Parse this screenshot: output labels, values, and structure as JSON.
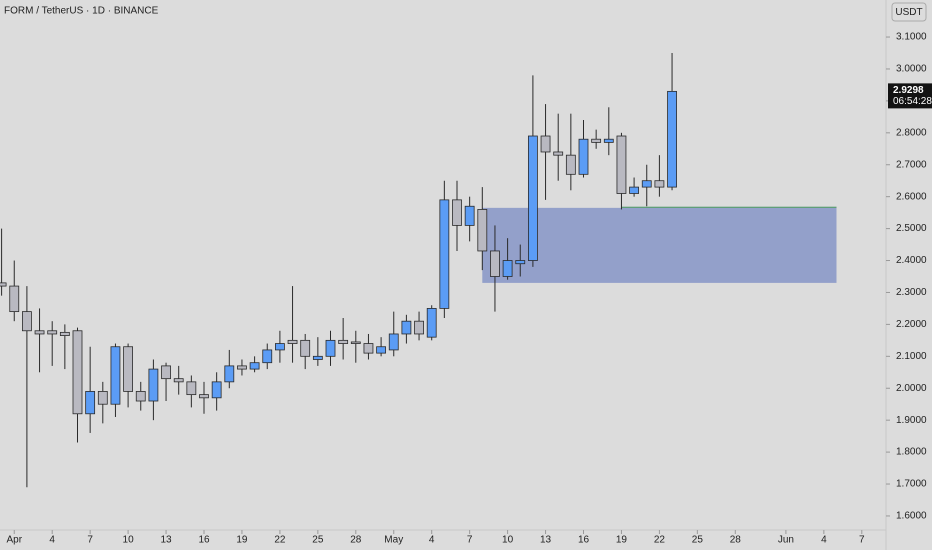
{
  "chart_data": {
    "type": "candlestick",
    "title": "FORM / TetherUS · 1D · BINANCE",
    "currency": "USDT",
    "countdown": "06:54:28",
    "last_price": 2.9298,
    "up_color": "#5b9cf5",
    "down_color": "#b9b9c1",
    "x": [
      "Mar 31",
      "Apr 1",
      "Apr 2",
      "Apr 3",
      "Apr 4",
      "Apr 5",
      "Apr 6",
      "Apr 7",
      "Apr 8",
      "Apr 9",
      "Apr 10",
      "Apr 11",
      "Apr 12",
      "Apr 13",
      "Apr 14",
      "Apr 15",
      "Apr 16",
      "Apr 17",
      "Apr 18",
      "Apr 19",
      "Apr 20",
      "Apr 21",
      "Apr 22",
      "Apr 23",
      "Apr 24",
      "Apr 25",
      "Apr 26",
      "Apr 27",
      "Apr 28",
      "Apr 29",
      "Apr 30",
      "May 1",
      "May 2",
      "May 3",
      "May 4",
      "May 5",
      "May 6",
      "May 7",
      "May 8",
      "May 9",
      "May 10",
      "May 11",
      "May 12",
      "May 13",
      "May 14",
      "May 15",
      "May 16",
      "May 17",
      "May 18",
      "May 19",
      "May 20",
      "May 21",
      "May 22",
      "May 23"
    ],
    "open": [
      2.33,
      2.32,
      2.24,
      2.18,
      2.18,
      2.175,
      2.18,
      1.92,
      1.99,
      1.95,
      2.13,
      1.99,
      1.96,
      2.07,
      2.03,
      2.02,
      1.98,
      1.97,
      2.02,
      2.07,
      2.06,
      2.08,
      2.12,
      2.15,
      2.15,
      2.09,
      2.1,
      2.15,
      2.145,
      2.14,
      2.11,
      2.12,
      2.17,
      2.21,
      2.16,
      2.25,
      2.59,
      2.51,
      2.56,
      2.43,
      2.35,
      2.39,
      2.4,
      2.79,
      2.74,
      2.73,
      2.67,
      2.78,
      2.77,
      2.79,
      2.61,
      2.63,
      2.65,
      2.63
    ],
    "high": [
      2.5,
      2.4,
      2.32,
      2.25,
      2.21,
      2.2,
      2.19,
      2.13,
      2.02,
      2.14,
      2.14,
      2.02,
      2.09,
      2.08,
      2.07,
      2.04,
      2.02,
      2.05,
      2.12,
      2.09,
      2.1,
      2.14,
      2.18,
      2.32,
      2.17,
      2.16,
      2.18,
      2.22,
      2.18,
      2.17,
      2.16,
      2.24,
      2.23,
      2.24,
      2.26,
      2.65,
      2.65,
      2.6,
      2.63,
      2.51,
      2.47,
      2.45,
      2.98,
      2.89,
      2.86,
      2.86,
      2.84,
      2.81,
      2.88,
      2.8,
      2.66,
      2.7,
      2.73,
      3.05
    ],
    "low": [
      2.29,
      2.21,
      1.69,
      2.05,
      2.07,
      2.06,
      1.83,
      1.86,
      1.89,
      1.91,
      1.94,
      1.93,
      1.9,
      1.96,
      1.98,
      1.94,
      1.92,
      1.93,
      2.0,
      2.04,
      2.05,
      2.06,
      2.08,
      2.08,
      2.06,
      2.07,
      2.07,
      2.09,
      2.08,
      2.09,
      2.1,
      2.1,
      2.14,
      2.15,
      2.15,
      2.22,
      2.43,
      2.46,
      2.37,
      2.24,
      2.34,
      2.35,
      2.38,
      2.59,
      2.65,
      2.62,
      2.66,
      2.75,
      2.73,
      2.56,
      2.6,
      2.57,
      2.6,
      2.62
    ],
    "close": [
      2.32,
      2.24,
      2.18,
      2.17,
      2.17,
      2.165,
      1.92,
      1.99,
      1.95,
      2.13,
      1.99,
      1.96,
      2.06,
      2.03,
      2.02,
      1.98,
      1.97,
      2.02,
      2.07,
      2.06,
      2.08,
      2.12,
      2.14,
      2.14,
      2.1,
      2.1,
      2.15,
      2.14,
      2.14,
      2.11,
      2.13,
      2.17,
      2.21,
      2.17,
      2.25,
      2.59,
      2.51,
      2.57,
      2.43,
      2.35,
      2.4,
      2.4,
      2.79,
      2.74,
      2.73,
      2.67,
      2.78,
      2.77,
      2.78,
      2.61,
      2.63,
      2.65,
      2.63,
      2.9298
    ],
    "zone": {
      "from": "May 8",
      "to": "Jun 5",
      "top": 2.565,
      "bottom": 2.33,
      "color": "#8e9cc8"
    },
    "level": {
      "value": 2.567,
      "from": "May 19",
      "to": "Jun 5",
      "color": "#3f8f5a"
    },
    "ylim": [
      1.556,
      3.216
    ],
    "yticks": [
      {
        "value": 1.6,
        "label": "1.6000"
      },
      {
        "value": 1.7,
        "label": "1.7000"
      },
      {
        "value": 1.8,
        "label": "1.8000"
      },
      {
        "value": 1.9,
        "label": "1.9000"
      },
      {
        "value": 2.0,
        "label": "2.0000"
      },
      {
        "value": 2.1,
        "label": "2.1000"
      },
      {
        "value": 2.2,
        "label": "2.2000"
      },
      {
        "value": 2.3,
        "label": "2.3000"
      },
      {
        "value": 2.4,
        "label": "2.4000"
      },
      {
        "value": 2.5,
        "label": "2.5000"
      },
      {
        "value": 2.6,
        "label": "2.6000"
      },
      {
        "value": 2.7,
        "label": "2.7000"
      },
      {
        "value": 2.8,
        "label": "2.8000"
      },
      {
        "value": 2.9,
        "label": "2.9000"
      },
      {
        "value": 3.0,
        "label": "3.0000"
      },
      {
        "value": 3.1,
        "label": "3.1000"
      }
    ],
    "xticks": [
      {
        "value": "Apr 1",
        "label": "Apr"
      },
      {
        "value": "Apr 4",
        "label": "4"
      },
      {
        "value": "Apr 7",
        "label": "7"
      },
      {
        "value": "Apr 10",
        "label": "10"
      },
      {
        "value": "Apr 13",
        "label": "13"
      },
      {
        "value": "Apr 16",
        "label": "16"
      },
      {
        "value": "Apr 19",
        "label": "19"
      },
      {
        "value": "Apr 22",
        "label": "22"
      },
      {
        "value": "Apr 25",
        "label": "25"
      },
      {
        "value": "Apr 28",
        "label": "28"
      },
      {
        "value": "May 1",
        "label": "May"
      },
      {
        "value": "May 4",
        "label": "4"
      },
      {
        "value": "May 7",
        "label": "7"
      },
      {
        "value": "May 10",
        "label": "10"
      },
      {
        "value": "May 13",
        "label": "13"
      },
      {
        "value": "May 16",
        "label": "16"
      },
      {
        "value": "May 19",
        "label": "19"
      },
      {
        "value": "May 22",
        "label": "22"
      },
      {
        "value": "May 25",
        "label": "25"
      },
      {
        "value": "May 28",
        "label": "28"
      },
      {
        "value": "Jun 1",
        "label": "Jun"
      },
      {
        "value": "Jun 4",
        "label": "4"
      },
      {
        "value": "Jun 7",
        "label": "7"
      }
    ]
  }
}
